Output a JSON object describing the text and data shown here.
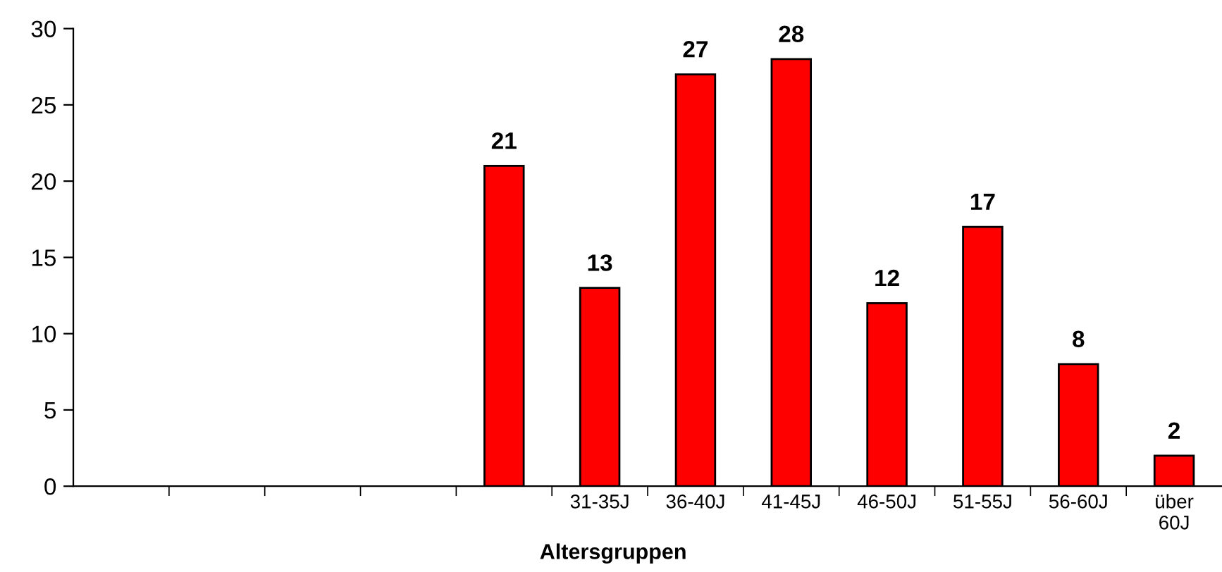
{
  "chart_data": {
    "type": "bar",
    "xlabel": "Altersgruppen",
    "categories": [
      null,
      null,
      null,
      null,
      null,
      "31-35J",
      "36-40J",
      "41-45J",
      "46-50J",
      "51-55J",
      "56-60J",
      "über\n60J"
    ],
    "values": [
      null,
      null,
      null,
      null,
      21,
      13,
      27,
      28,
      12,
      17,
      8,
      2
    ],
    "color": "#ff0000",
    "ylim": [
      0,
      30
    ],
    "yticks": [
      0,
      5,
      10,
      15,
      20,
      25,
      30
    ],
    "grid": false,
    "data_labels": true
  }
}
